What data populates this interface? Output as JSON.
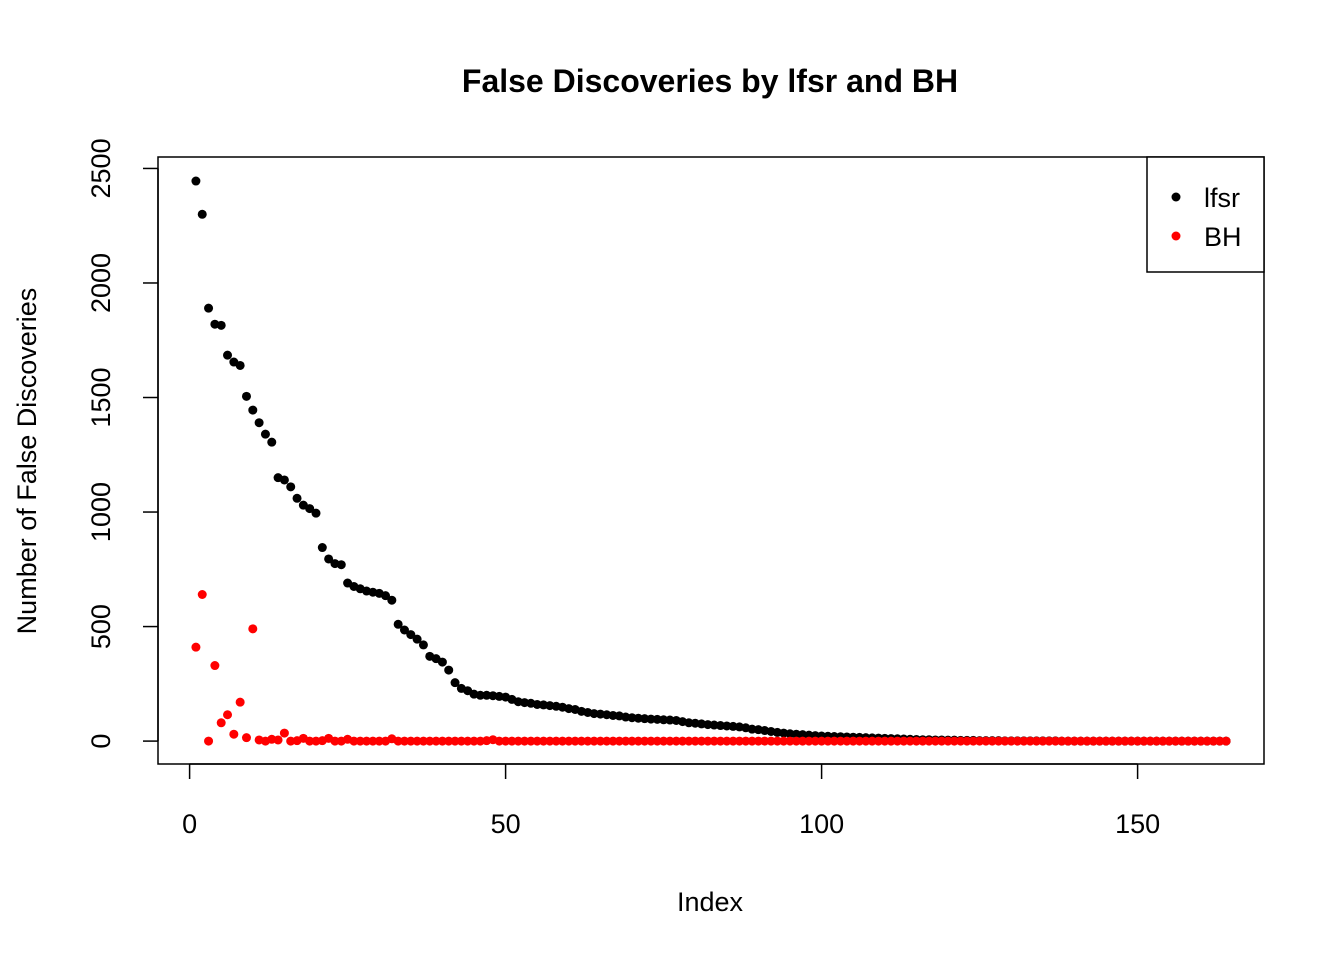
{
  "chart_data": {
    "type": "scatter",
    "title": "False Discoveries by lfsr and BH",
    "xlabel": "Index",
    "ylabel": "Number of False Discoveries",
    "xlim": [
      -5,
      170
    ],
    "ylim": [
      -100,
      2550
    ],
    "x_ticks": [
      0,
      50,
      100,
      150
    ],
    "y_ticks": [
      0,
      500,
      1000,
      1500,
      2000,
      2500
    ],
    "grid": false,
    "legend": {
      "position": "top-right"
    },
    "series": [
      {
        "name": "lfsr",
        "color": "#000000",
        "values": [
          2445,
          2300,
          1890,
          1820,
          1815,
          1685,
          1655,
          1640,
          1505,
          1445,
          1390,
          1340,
          1305,
          1150,
          1140,
          1110,
          1060,
          1030,
          1015,
          995,
          845,
          795,
          775,
          770,
          690,
          675,
          665,
          655,
          650,
          645,
          635,
          615,
          510,
          485,
          465,
          445,
          420,
          370,
          360,
          345,
          310,
          255,
          230,
          220,
          205,
          200,
          200,
          198,
          195,
          192,
          182,
          172,
          168,
          165,
          160,
          158,
          155,
          152,
          148,
          142,
          138,
          130,
          125,
          120,
          118,
          115,
          112,
          110,
          105,
          102,
          100,
          98,
          96,
          95,
          93,
          92,
          90,
          85,
          80,
          78,
          75,
          72,
          70,
          68,
          66,
          64,
          62,
          58,
          52,
          50,
          46,
          42,
          38,
          35,
          32,
          30,
          28,
          26,
          24,
          22,
          21,
          20,
          19,
          18,
          17,
          16,
          15,
          14,
          13,
          12,
          11,
          10,
          9,
          8,
          7,
          6,
          6,
          5,
          5,
          4,
          4,
          3,
          3,
          3,
          2,
          2,
          2,
          2,
          1,
          1,
          1,
          1,
          1,
          1,
          1,
          1,
          1,
          0,
          0,
          0,
          0,
          0,
          0,
          0,
          0,
          0,
          0,
          0,
          0,
          0,
          0,
          0,
          0,
          0,
          0,
          0,
          0,
          0,
          0,
          0,
          0,
          0,
          0,
          0
        ]
      },
      {
        "name": "BH",
        "color": "#ff0000",
        "values": [
          410,
          640,
          0,
          330,
          80,
          115,
          30,
          170,
          15,
          490,
          5,
          0,
          8,
          5,
          35,
          0,
          2,
          12,
          0,
          0,
          2,
          12,
          0,
          0,
          8,
          0,
          0,
          0,
          0,
          0,
          0,
          10,
          0,
          0,
          0,
          0,
          0,
          0,
          0,
          0,
          0,
          0,
          0,
          0,
          0,
          0,
          2,
          6,
          0,
          0,
          0,
          0,
          0,
          0,
          0,
          0,
          0,
          0,
          0,
          0,
          0,
          0,
          0,
          0,
          0,
          0,
          0,
          0,
          0,
          0,
          0,
          0,
          0,
          0,
          0,
          0,
          0,
          0,
          0,
          0,
          0,
          0,
          0,
          0,
          0,
          0,
          0,
          0,
          0,
          0,
          0,
          0,
          0,
          0,
          0,
          0,
          0,
          0,
          0,
          0,
          0,
          0,
          0,
          0,
          0,
          0,
          0,
          0,
          0,
          0,
          0,
          0,
          0,
          0,
          0,
          0,
          0,
          0,
          0,
          0,
          0,
          0,
          0,
          0,
          0,
          0,
          0,
          0,
          0,
          0,
          0,
          0,
          0,
          0,
          0,
          0,
          0,
          0,
          0,
          0,
          0,
          0,
          0,
          0,
          0,
          0,
          0,
          0,
          0,
          0,
          0,
          0,
          0,
          0,
          0,
          0,
          0,
          0,
          0,
          0,
          0,
          0,
          0,
          0
        ]
      }
    ]
  }
}
